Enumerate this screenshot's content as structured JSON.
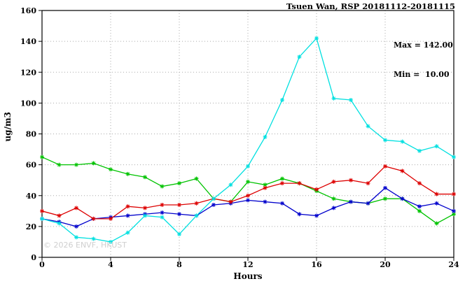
{
  "header": {
    "title": "Tsuen Wan, RSP 20181112-20181115"
  },
  "annotation": {
    "max_label": "Max = 142.00",
    "min_label": "Min =  10.00"
  },
  "watermark": "© 2026 ENVF, HKUST",
  "chart_data": {
    "type": "line",
    "title": "Tsuen Wan, RSP 20181112-20181115",
    "xlabel": "Hours",
    "ylabel": "ug/m3",
    "xlim": [
      0,
      24
    ],
    "ylim": [
      0,
      160
    ],
    "xticks": [
      0,
      4,
      8,
      12,
      16,
      20,
      24
    ],
    "yticks": [
      0,
      20,
      40,
      60,
      80,
      100,
      120,
      140,
      160
    ],
    "grid": true,
    "legend_position": "none",
    "max": 142.0,
    "min": 10.0,
    "x": [
      0,
      1,
      2,
      3,
      4,
      5,
      6,
      7,
      8,
      9,
      10,
      11,
      12,
      13,
      14,
      15,
      16,
      17,
      18,
      19,
      20,
      21,
      22,
      23,
      24
    ],
    "series": [
      {
        "name": "day-green",
        "color": "#00c300",
        "values": [
          65,
          60,
          60,
          61,
          57,
          54,
          52,
          46,
          48,
          51,
          38,
          36,
          49,
          47,
          51,
          48,
          43,
          38,
          36,
          35,
          38,
          38,
          30,
          22,
          28
        ]
      },
      {
        "name": "day-blue",
        "color": "#0000cc",
        "values": [
          25,
          23,
          20,
          25,
          26,
          27,
          28,
          29,
          28,
          27,
          34,
          35,
          37,
          36,
          35,
          28,
          27,
          32,
          36,
          35,
          45,
          38,
          33,
          35,
          30
        ]
      },
      {
        "name": "day-red",
        "color": "#dd0000",
        "values": [
          30,
          27,
          32,
          25,
          25,
          33,
          32,
          34,
          34,
          35,
          38,
          36,
          40,
          45,
          48,
          48,
          44,
          49,
          50,
          48,
          59,
          56,
          48,
          41,
          41
        ]
      },
      {
        "name": "day-cyan",
        "color": "#00e0e0",
        "values": [
          25,
          22,
          13,
          12,
          10,
          16,
          27,
          26,
          15,
          27,
          38,
          47,
          59,
          78,
          102,
          130,
          142,
          103,
          102,
          85,
          76,
          75,
          69,
          72,
          65
        ]
      }
    ],
    "colors": {
      "grid": "#aaaaaa",
      "frame": "#000000"
    }
  }
}
